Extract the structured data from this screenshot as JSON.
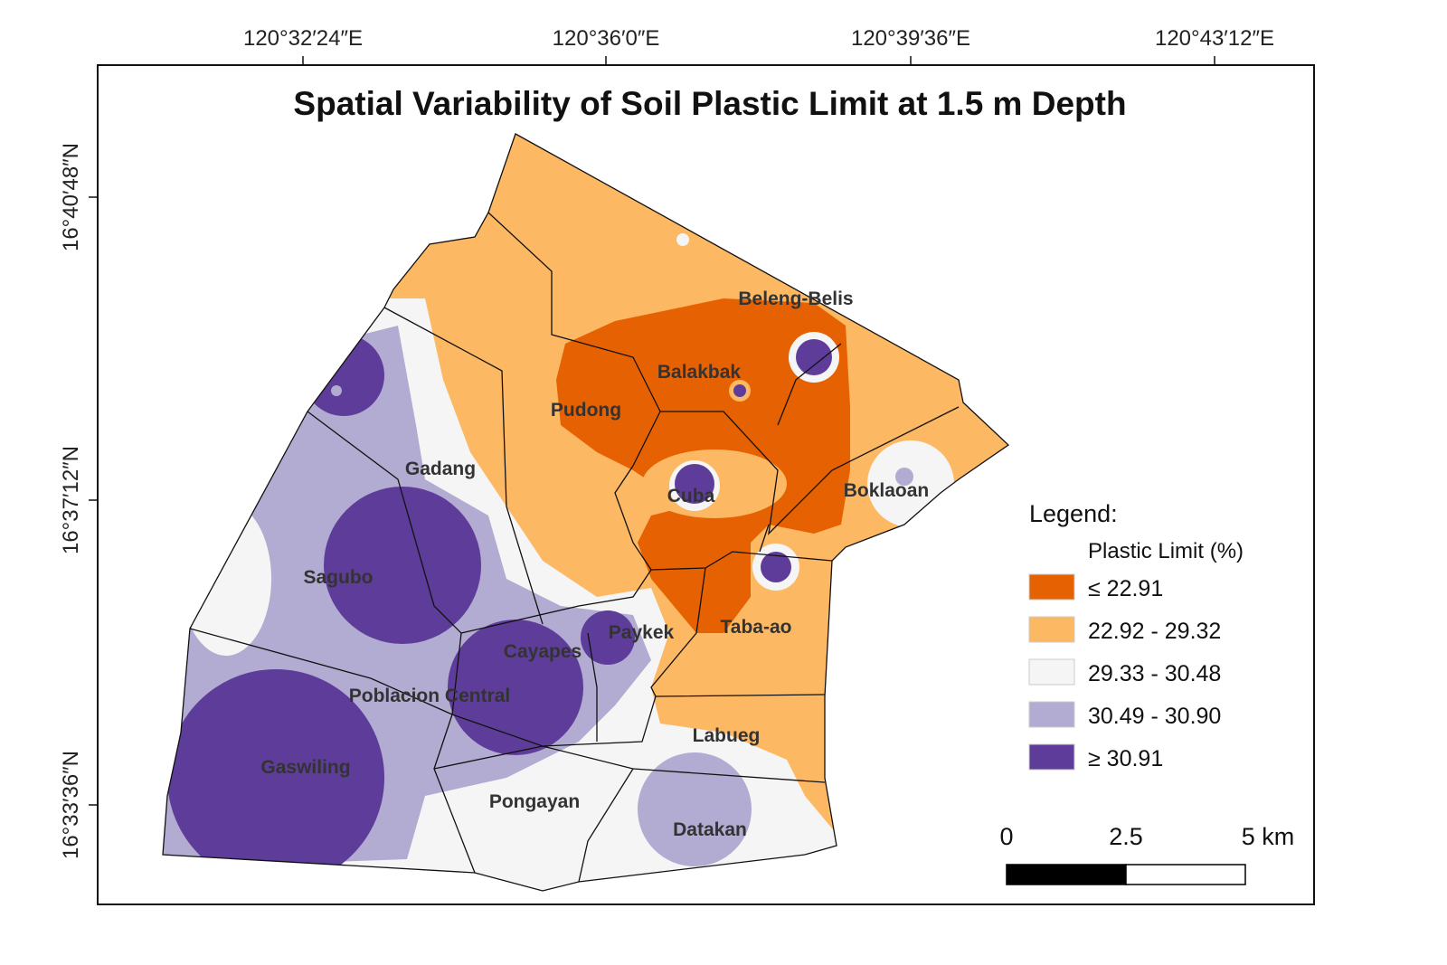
{
  "title": "Spatial Variability of Soil Plastic Limit at 1.5 m Depth",
  "longitude_labels": [
    "120°32′24″E",
    "120°36′0″E",
    "120°39′36″E",
    "120°43′12″E"
  ],
  "latitude_labels": [
    "16°40′48″N",
    "16°37′12″N",
    "16°33′36″N"
  ],
  "places": [
    "Beleng-Belis",
    "Balakbak",
    "Pudong",
    "Gadang",
    "Cuba",
    "Boklaoan",
    "Sagubo",
    "Taba-ao",
    "Paykek",
    "Cayapes",
    "Poblacion Central",
    "Labueg",
    "Gaswiling",
    "Pongayan",
    "Datakan"
  ],
  "legend": {
    "title": "Legend:",
    "subtitle": "Plastic Limit (%)",
    "items": [
      {
        "label": "≤ 22.91",
        "color": "#e66101"
      },
      {
        "label": "22.92 - 29.32",
        "color": "#fdb863"
      },
      {
        "label": "29.33 - 30.48",
        "color": "#f5f5f5"
      },
      {
        "label": "30.49 - 30.90",
        "color": "#b2abd2"
      },
      {
        "label": "≥ 30.91",
        "color": "#5e3c99"
      }
    ]
  },
  "scale_bar": [
    "0",
    "2.5",
    "5 km"
  ]
}
